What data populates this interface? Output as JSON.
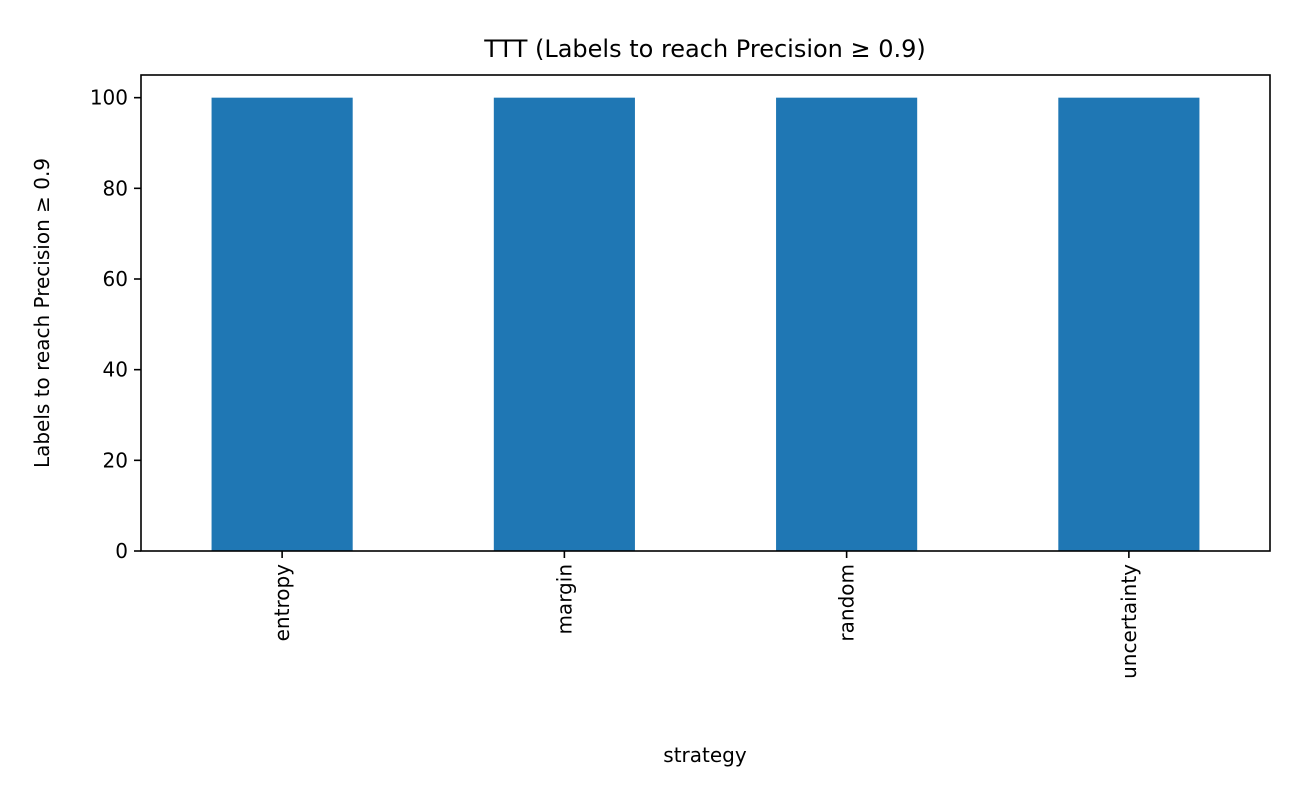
{
  "chart_data": {
    "type": "bar",
    "title": "TTT (Labels to reach Precision ≥ 0.9)",
    "xlabel": "strategy",
    "ylabel": "Labels to reach Precision ≥ 0.9",
    "categories": [
      "entropy",
      "margin",
      "random",
      "uncertainty"
    ],
    "values": [
      100,
      100,
      100,
      100
    ],
    "ylim": [
      0,
      105
    ],
    "yticks": [
      0,
      20,
      40,
      60,
      80,
      100
    ],
    "grid": false,
    "legend": "none",
    "bar_color": "#1f77b4"
  }
}
